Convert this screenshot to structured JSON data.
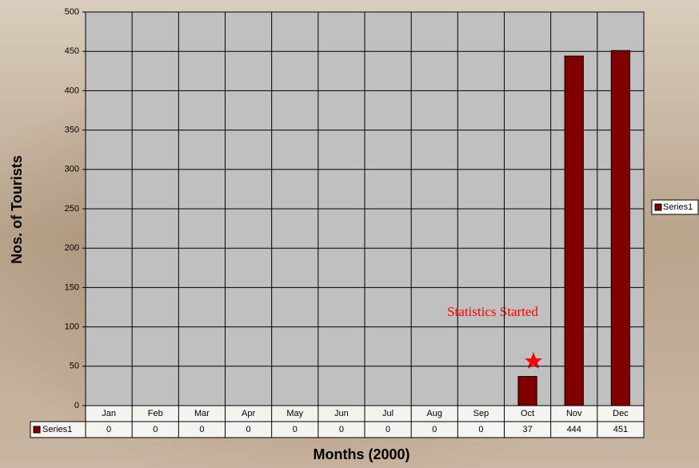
{
  "chart_data": {
    "type": "bar",
    "x_label": "Months (2000)",
    "y_label": "Nos. of Tourists",
    "categories": [
      "Jan",
      "Feb",
      "Mar",
      "Apr",
      "May",
      "Jun",
      "Jul",
      "Aug",
      "Sep",
      "Oct",
      "Nov",
      "Dec"
    ],
    "series": [
      {
        "name": "Series1",
        "color": "#800000",
        "values": [
          0,
          0,
          0,
          0,
          0,
          0,
          0,
          0,
          0,
          37,
          444,
          451
        ]
      }
    ],
    "ylim": [
      0,
      500
    ],
    "yticks": [
      0,
      50,
      100,
      150,
      200,
      250,
      300,
      350,
      400,
      450,
      500
    ],
    "grid": true,
    "legend": "right",
    "data_table": true,
    "annotation": "Statistics Started"
  }
}
